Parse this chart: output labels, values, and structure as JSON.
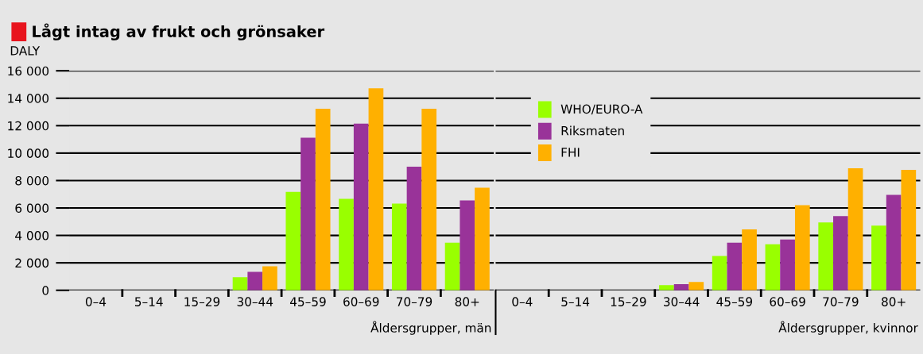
{
  "chart_data": [
    {
      "type": "bar",
      "title": "Lågt intag av frukt och grönsaker",
      "ylabel": "DALY",
      "xlabel": "Åldersgrupper, män",
      "categories": [
        "0–4",
        "5–14",
        "15–29",
        "30–44",
        "45–59",
        "60–69",
        "70–79",
        "80+"
      ],
      "series": [
        {
          "color": "#99ff00",
          "values": [
            0,
            0,
            0,
            950,
            7180,
            6670,
            6320,
            3470
          ]
        },
        {
          "color": "#993399",
          "values": [
            0,
            0,
            0,
            1350,
            11120,
            12150,
            9010,
            6550
          ]
        },
        {
          "color": "#ffb000",
          "values": [
            0,
            0,
            0,
            1750,
            13240,
            14720,
            13240,
            7470
          ]
        }
      ],
      "ylim": [
        0,
        16000
      ],
      "yticks": [
        {
          "value": 0,
          "label": "0"
        },
        {
          "value": 2000,
          "label": "2 000"
        },
        {
          "value": 4000,
          "label": "4 000"
        },
        {
          "value": 6000,
          "label": "6 000"
        },
        {
          "value": 8000,
          "label": "8 000"
        },
        {
          "value": 10000,
          "label": "10 000"
        },
        {
          "value": 12000,
          "label": "12 000"
        },
        {
          "value": 14000,
          "label": "14 000"
        },
        {
          "value": 16000,
          "label": "16 000"
        }
      ],
      "grid": "y"
    },
    {
      "type": "bar",
      "xlabel": "Åldersgrupper, kvinnor",
      "categories": [
        "0–4",
        "5–14",
        "15–29",
        "30–44",
        "45–59",
        "60–69",
        "70–79",
        "80+"
      ],
      "series": [
        {
          "name": "WHO/EURO-A",
          "color": "#99ff00",
          "values": [
            0,
            0,
            0,
            380,
            2500,
            3350,
            4950,
            4720
          ]
        },
        {
          "name": "Riksmaten",
          "color": "#993399",
          "values": [
            0,
            0,
            0,
            440,
            3470,
            3700,
            5410,
            6950
          ]
        },
        {
          "name": "FHI",
          "color": "#ffb000",
          "values": [
            0,
            0,
            0,
            610,
            4440,
            6210,
            8900,
            8780
          ]
        }
      ],
      "ylim": [
        0,
        16000
      ],
      "grid": "y",
      "legend": "top left",
      "tick_labels": "x"
    }
  ]
}
